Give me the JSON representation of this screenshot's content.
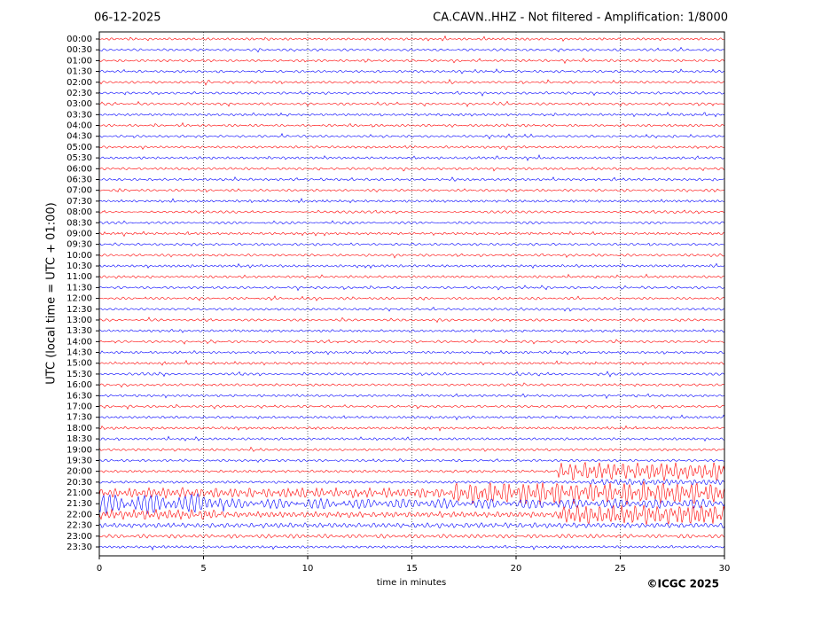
{
  "chart_data": {
    "type": "helicorder",
    "date": "06-12-2025",
    "title": "CA.CAVN..HHZ - Not filtered - Amplification: 1/8000",
    "xlabel": "time in minutes",
    "ylabel": "UTC (local time = UTC + 01:00)",
    "copyright": "©ICGC 2025",
    "xlim": [
      0,
      30
    ],
    "xticks": [
      0,
      5,
      10,
      15,
      20,
      25,
      30
    ],
    "categories": [
      "00:00",
      "00:30",
      "01:00",
      "01:30",
      "02:00",
      "02:30",
      "03:00",
      "03:30",
      "04:00",
      "04:30",
      "05:00",
      "05:30",
      "06:00",
      "06:30",
      "07:00",
      "07:30",
      "08:00",
      "08:30",
      "09:00",
      "09:30",
      "10:00",
      "10:30",
      "11:00",
      "11:30",
      "12:00",
      "12:30",
      "13:00",
      "13:30",
      "14:00",
      "14:30",
      "15:00",
      "15:30",
      "16:00",
      "16:30",
      "17:00",
      "17:30",
      "18:00",
      "18:30",
      "19:00",
      "19:30",
      "20:00",
      "20:30",
      "21:00",
      "21:30",
      "22:00",
      "22:30",
      "23:00",
      "23:30"
    ],
    "colors": [
      "#ff0000",
      "#0000ff"
    ],
    "grid": true
  }
}
